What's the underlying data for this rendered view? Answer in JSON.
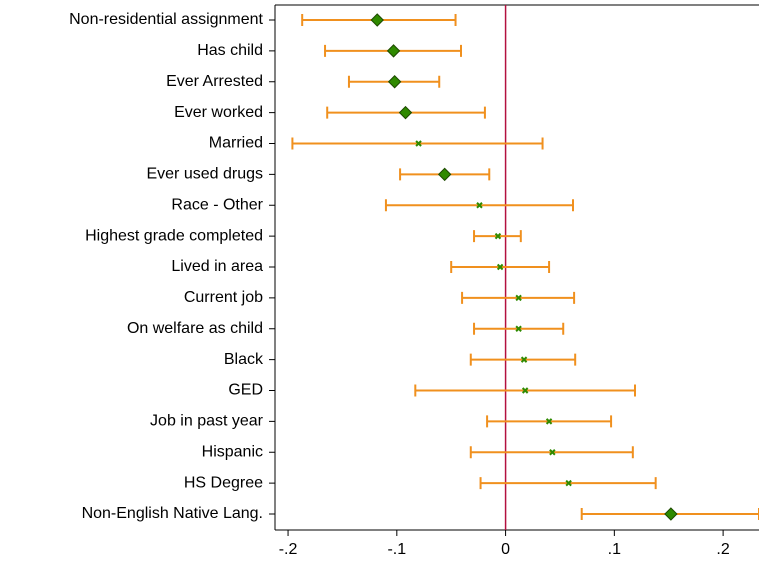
{
  "chart_data": {
    "type": "coefplot",
    "categories": [
      "Non-residential assignment",
      "Has child",
      "Ever Arrested",
      "Ever worked",
      "Married",
      "Ever used drugs",
      "Race - Other",
      "Highest grade completed",
      "Lived in area",
      "Current job",
      "On welfare as child",
      "Black",
      "GED",
      "Job in past year",
      "Hispanic",
      "HS Degree",
      "Non-English Native Lang."
    ],
    "values": [
      -0.118,
      -0.103,
      -0.102,
      -0.092,
      -0.08,
      -0.056,
      -0.024,
      -0.007,
      -0.005,
      0.012,
      0.012,
      0.017,
      0.018,
      0.04,
      0.043,
      0.058,
      0.152
    ],
    "lower": [
      -0.187,
      -0.166,
      -0.144,
      -0.164,
      -0.196,
      -0.097,
      -0.11,
      -0.029,
      -0.05,
      -0.04,
      -0.029,
      -0.032,
      -0.083,
      -0.017,
      -0.032,
      -0.023,
      0.07
    ],
    "upper": [
      -0.046,
      -0.041,
      -0.061,
      -0.019,
      0.034,
      -0.015,
      0.062,
      0.014,
      0.04,
      0.063,
      0.053,
      0.064,
      0.119,
      0.097,
      0.117,
      0.138,
      0.233
    ],
    "markers": [
      "diamond",
      "diamond",
      "diamond",
      "diamond",
      "x",
      "diamond",
      "x",
      "x",
      "x",
      "x",
      "x",
      "x",
      "x",
      "x",
      "x",
      "x",
      "diamond"
    ],
    "marker_color": "#2f8a00",
    "ci_color": "#f0901e",
    "xline": 0,
    "xline_color": "#b3103f",
    "xlim": [
      -0.212,
      0.233
    ],
    "xticks": [
      {
        "value": -0.2,
        "label": "-.2"
      },
      {
        "value": -0.1,
        "label": "-.1"
      },
      0,
      {
        "value": 0.1,
        "label": ".1"
      },
      {
        "value": 0.2,
        "label": ".2"
      }
    ]
  }
}
